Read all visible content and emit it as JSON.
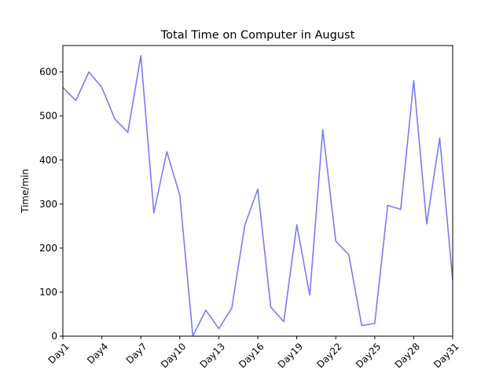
{
  "chart_data": {
    "type": "line",
    "title": "Total Time on Computer in August",
    "xlabel": "",
    "ylabel": "Time/min",
    "ylim": [
      0,
      660
    ],
    "yticks": [
      0,
      100,
      200,
      300,
      400,
      500,
      600
    ],
    "categories": [
      "Day1",
      "Day2",
      "Day3",
      "Day4",
      "Day5",
      "Day6",
      "Day7",
      "Day8",
      "Day9",
      "Day10",
      "Day11",
      "Day12",
      "Day13",
      "Day14",
      "Day15",
      "Day16",
      "Day17",
      "Day18",
      "Day19",
      "Day20",
      "Day21",
      "Day22",
      "Day23",
      "Day24",
      "Day25",
      "Day26",
      "Day27",
      "Day28",
      "Day29",
      "Day30",
      "Day31"
    ],
    "xtick_labels": [
      "Day1",
      "Day4",
      "Day7",
      "Day10",
      "Day13",
      "Day16",
      "Day19",
      "Day22",
      "Day25",
      "Day28",
      "Day31"
    ],
    "xtick_indices": [
      0,
      3,
      6,
      9,
      12,
      15,
      18,
      21,
      24,
      27,
      30
    ],
    "series": [
      {
        "name": "Time",
        "color": "#7b7bf5",
        "values": [
          565,
          535,
          600,
          565,
          493,
          463,
          637,
          280,
          419,
          320,
          0,
          59,
          17,
          64,
          252,
          334,
          66,
          33,
          253,
          93,
          469,
          216,
          185,
          24,
          29,
          297,
          288,
          580,
          255,
          450,
          127
        ]
      }
    ],
    "grid": false,
    "legend": "none"
  }
}
